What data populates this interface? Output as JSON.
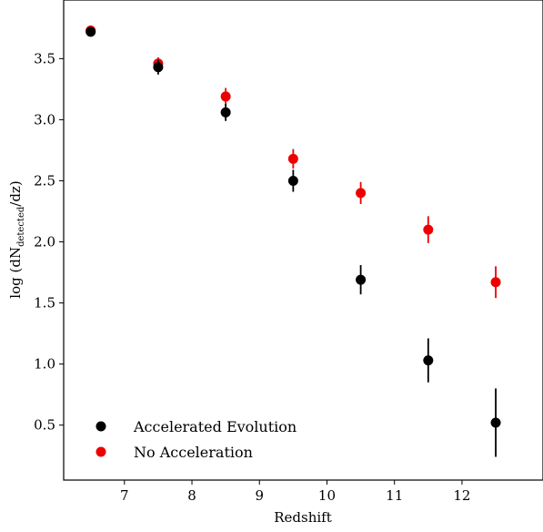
{
  "chart_data": {
    "type": "scatter",
    "xlabel": "Redshift",
    "ylabel_main": "log (dN",
    "ylabel_sub": "detected",
    "ylabel_tail": "/dz)",
    "xlim": [
      6.1,
      13.2
    ],
    "ylim": [
      0.05,
      3.98
    ],
    "xticks": [
      7,
      8,
      9,
      10,
      11,
      12
    ],
    "xtick_labels": [
      "7",
      "8",
      "9",
      "10",
      "11",
      "12"
    ],
    "yticks": [
      0.5,
      1.0,
      1.5,
      2.0,
      2.5,
      3.0,
      3.5
    ],
    "ytick_labels": [
      "0.5",
      "1.0",
      "1.5",
      "2.0",
      "2.5",
      "3.0",
      "3.5"
    ],
    "grid": false,
    "legend_position": "bottom-left",
    "series": [
      {
        "name": "Accelerated Evolution",
        "color": "#000000",
        "x": [
          6.5,
          7.5,
          8.5,
          9.5,
          10.5,
          11.5,
          12.5
        ],
        "y": [
          3.72,
          3.43,
          3.06,
          2.5,
          1.69,
          1.03,
          0.52
        ],
        "yerr": [
          0.04,
          0.06,
          0.07,
          0.09,
          0.12,
          0.18,
          0.28
        ]
      },
      {
        "name": "No Acceleration",
        "color": "#ee0000",
        "x": [
          6.5,
          7.5,
          8.5,
          9.5,
          10.5,
          11.5,
          12.5
        ],
        "y": [
          3.73,
          3.46,
          3.19,
          2.68,
          2.4,
          2.1,
          1.67
        ],
        "yerr": [
          0.04,
          0.05,
          0.07,
          0.08,
          0.09,
          0.11,
          0.13
        ]
      }
    ]
  }
}
